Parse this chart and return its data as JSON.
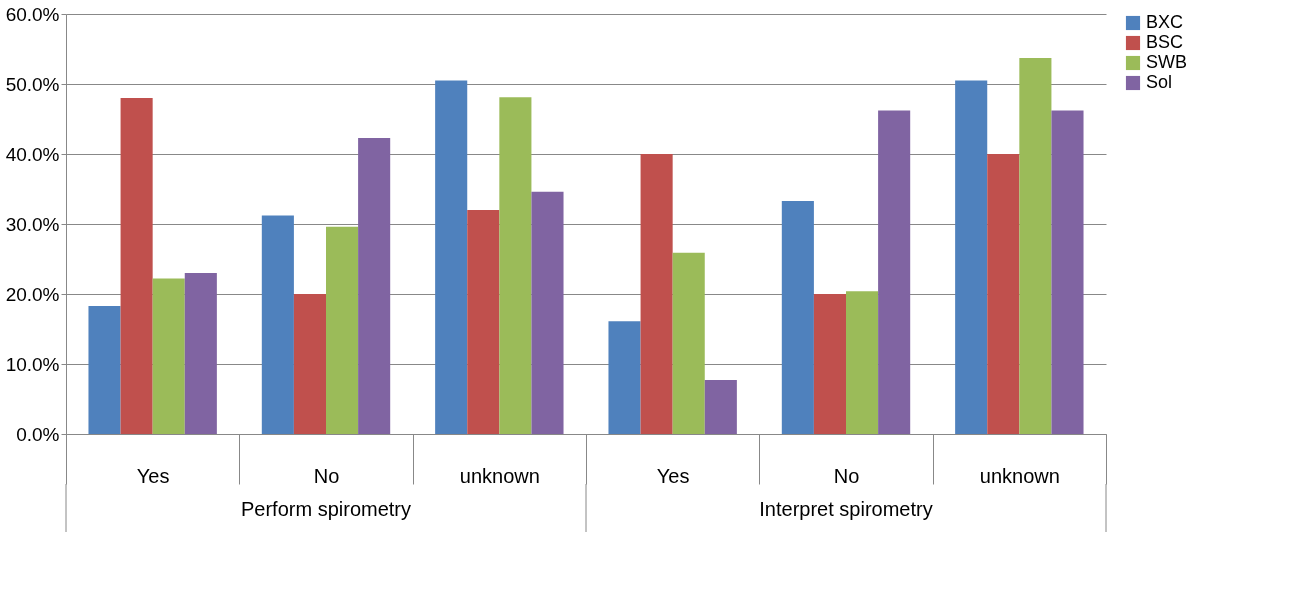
{
  "chart_data": {
    "type": "bar",
    "categories": [
      "Yes",
      "No",
      "unknown",
      "Yes",
      "No",
      "unknown"
    ],
    "annotations": [
      "Perform spirometry",
      "Interpret spirometry"
    ],
    "series": [
      {
        "name": "BXC",
        "color": "#4f81bd",
        "values": [
          18.3,
          31.2,
          50.5,
          16.1,
          33.3,
          50.5
        ]
      },
      {
        "name": "BSC",
        "color": "#c0504d",
        "values": [
          48.0,
          20.0,
          32.0,
          40.0,
          20.0,
          40.0
        ]
      },
      {
        "name": "SWB",
        "color": "#9bbb59",
        "values": [
          22.2,
          29.6,
          48.1,
          25.9,
          20.4,
          53.7
        ]
      },
      {
        "name": "Sol",
        "color": "#8064a2",
        "values": [
          23.0,
          42.3,
          34.6,
          7.7,
          46.2,
          46.2
        ]
      }
    ],
    "ylim": [
      0,
      60
    ],
    "yticks": [
      {
        "value": 0,
        "label": "0.0%"
      },
      {
        "value": 10,
        "label": "10.0%"
      },
      {
        "value": 20,
        "label": "20.0%"
      },
      {
        "value": 30,
        "label": "30.0%"
      },
      {
        "value": 40,
        "label": "40.0%"
      },
      {
        "value": 50,
        "label": "50.0%"
      },
      {
        "value": 60,
        "label": "60.0%"
      }
    ],
    "grid": "y",
    "legend": "right"
  }
}
